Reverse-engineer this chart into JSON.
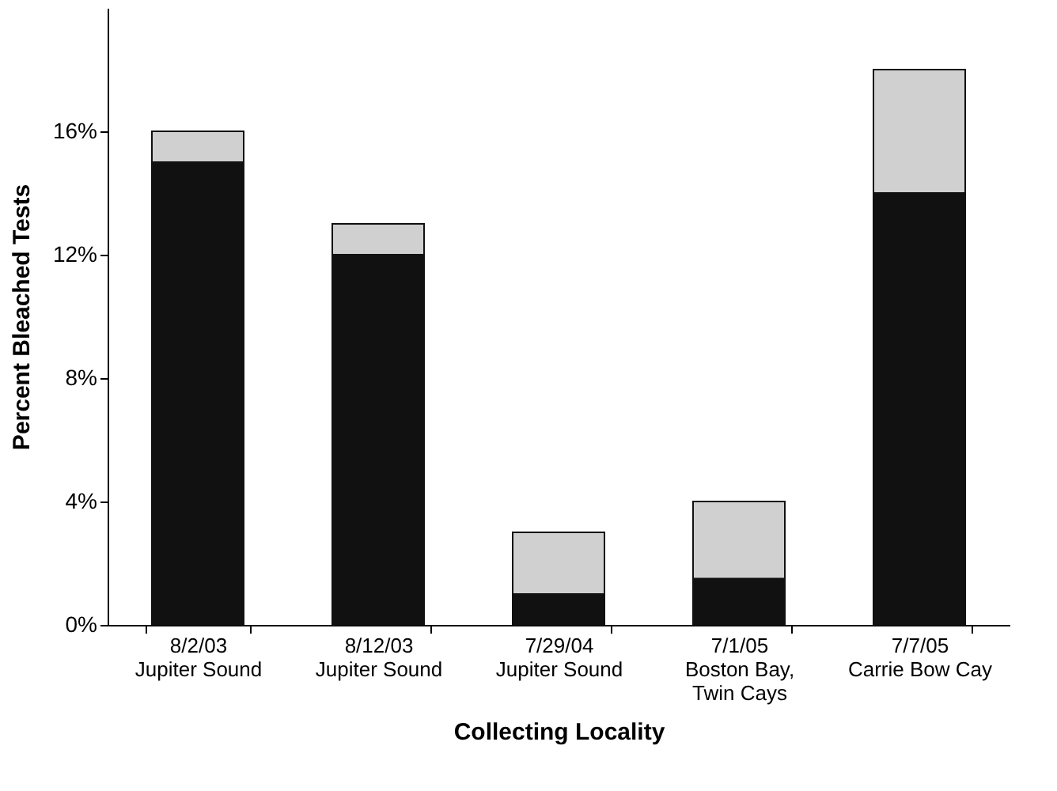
{
  "chart_data": {
    "type": "bar",
    "stacked": true,
    "xlabel": "Collecting Locality",
    "ylabel": "Percent Bleached Tests",
    "categories": [
      "8/2/03\nJupiter Sound",
      "8/12/03\nJupiter Sound",
      "7/29/04\nJupiter Sound",
      "7/1/05\nBoston Bay,\nTwin Cays",
      "7/7/05\nCarrie Bow Cay"
    ],
    "series": [
      {
        "color": "#111111",
        "values": [
          15,
          12,
          1,
          1.5,
          14
        ]
      },
      {
        "color": "#d0d0d0",
        "values": [
          1,
          1,
          2,
          2.5,
          4
        ]
      }
    ],
    "ylim": [
      0,
      20
    ],
    "yticks": [
      {
        "value": 0,
        "label": "0%"
      },
      {
        "value": 4,
        "label": "4%"
      },
      {
        "value": 8,
        "label": "8%"
      },
      {
        "value": 12,
        "label": "12%"
      },
      {
        "value": 16,
        "label": "16%"
      }
    ],
    "grid": false,
    "legend": false
  }
}
